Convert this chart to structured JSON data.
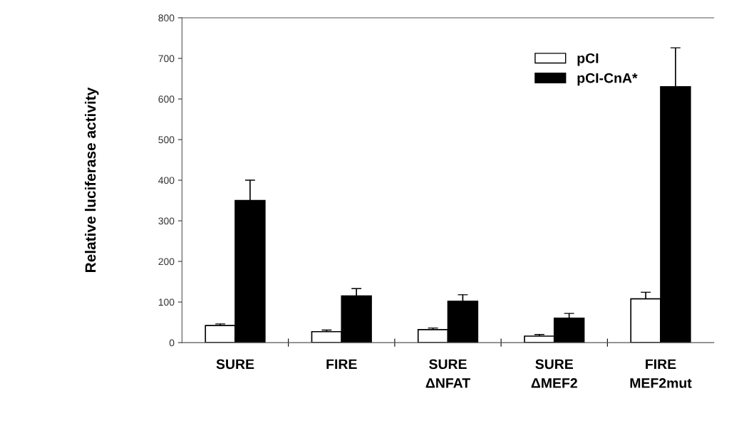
{
  "chart_data": {
    "type": "bar",
    "ylabel": "Relative luciferase activity",
    "categories": [
      "SURE",
      "FIRE",
      "SURE\nΔNFAT",
      "SURE\nΔMEF2",
      "FIRE\nMEF2mut"
    ],
    "series": [
      {
        "name": "pCI",
        "color": "#ffffff",
        "values": [
          42,
          27,
          32,
          16,
          108
        ],
        "errors": [
          4,
          4,
          4,
          4,
          16
        ]
      },
      {
        "name": "pCI-CnA*",
        "color": "#000000",
        "values": [
          350,
          115,
          102,
          60,
          630
        ],
        "errors": [
          50,
          18,
          16,
          12,
          96
        ]
      }
    ],
    "ylim": [
      0,
      800
    ],
    "yticks": [
      0,
      100,
      200,
      300,
      400,
      500,
      600,
      700,
      800
    ],
    "legend": "top right",
    "grid": false
  }
}
